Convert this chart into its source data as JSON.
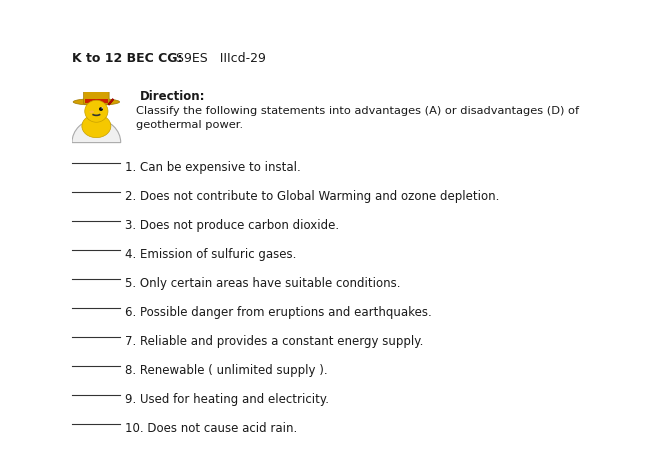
{
  "background_color": "#ffffff",
  "header_bold": "K to 12 BEC CG:",
  "header_normal": " S9ES   IIIcd-29",
  "direction_label": "Direction",
  "direction_line1": "Classify the following statements into advantages (A) or disadvantages (D) of",
  "direction_line2": "geothermal power.",
  "items": [
    "1. Can be expensive to instal.",
    "2. Does not contribute to Global Warming and ozone depletion.",
    "3. Does not produce carbon dioxide.",
    "4. Emission of sulfuric gases.",
    "5. Only certain areas have suitable conditions.",
    "6. Possible danger from eruptions and earthquakes.",
    "7. Reliable and provides a constant energy supply.",
    "8. Renewable ( unlimited supply ).",
    "9. Used for heating and electricity.",
    "10. Does not cause acid rain."
  ],
  "text_color": "#1a1a1a",
  "line_color": "#333333",
  "font_size_header": 9,
  "font_size_direction": 8.5,
  "font_size_items": 8.5
}
